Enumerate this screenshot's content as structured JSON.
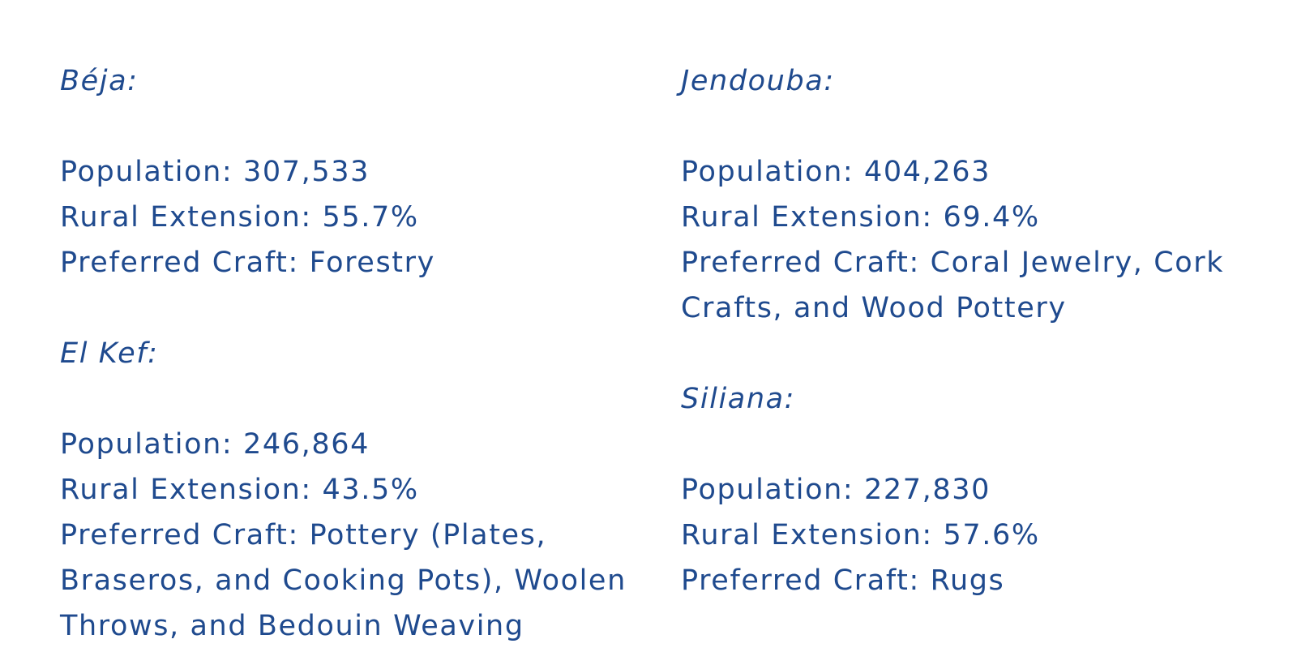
{
  "regions": {
    "beja": {
      "heading": "Béja:",
      "population": "Population: 307,533",
      "rural": "Rural Extension: 55.7%",
      "craft": [
        "Preferred Craft: Forestry"
      ]
    },
    "el_kef": {
      "heading": "El Kef:",
      "population": "Population: 246,864",
      "rural": "Rural Extension: 43.5%",
      "craft": [
        "Preferred Craft: Pottery (Plates,",
        "Braseros, and Cooking Pots), Woolen",
        "Throws, and Bedouin Weaving"
      ]
    },
    "jendouba": {
      "heading": "Jendouba:",
      "population": "Population: 404,263",
      "rural": "Rural Extension: 69.4%",
      "craft": [
        "Preferred Craft: Coral Jewelry, Cork",
        "Crafts, and Wood Pottery"
      ]
    },
    "siliana": {
      "heading": "Siliana:",
      "population": "Population: 227,830",
      "rural": "Rural Extension: 57.6%",
      "craft": [
        "Preferred Craft: Rugs"
      ]
    }
  },
  "colors": {
    "text": "#1f4a8e",
    "background": "#ffffff"
  }
}
